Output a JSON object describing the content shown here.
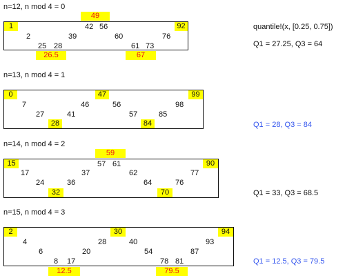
{
  "sections": [
    {
      "title": "n=12, n mod 4 = 0",
      "min": "1",
      "max": "92",
      "median": "49",
      "values": [
        "2",
        "25",
        "28",
        "39",
        "42",
        "56",
        "60",
        "61",
        "73",
        "76"
      ],
      "q1": "26.5",
      "q3": "67"
    },
    {
      "title": "n=13, n mod 4 = 1",
      "min": "0",
      "max": "99",
      "median": "47",
      "values": [
        "7",
        "27",
        "41",
        "46",
        "56",
        "57",
        "85",
        "98"
      ],
      "q1": "28",
      "q3": "84"
    },
    {
      "title": "n=14, n mod 4 = 2",
      "min": "15",
      "max": "90",
      "median": "59",
      "values": [
        "17",
        "24",
        "36",
        "37",
        "57",
        "61",
        "62",
        "64",
        "76",
        "77"
      ],
      "q1": "32",
      "q3": "70"
    },
    {
      "title": "n=15, n mod 4 = 3",
      "min": "2",
      "max": "94",
      "median": "30",
      "values": [
        "4",
        "6",
        "8",
        "17",
        "20",
        "28",
        "40",
        "54",
        "78",
        "81",
        "87",
        "93"
      ],
      "q1": "12.5",
      "q3": "79.5"
    }
  ],
  "side_notes": {
    "function_call": "quantile!(x, [0.25, 0.75])",
    "result_0": "Q1 = 27.25, Q3 = 64",
    "result_1": "Q1 = 28, Q3 = 84",
    "result_2": "Q1 = 33, Q3 = 68.5",
    "result_3": "Q1 = 12.5, Q3 = 79.5"
  },
  "colors": {
    "highlight": "#ffff00",
    "quartile_text": "#ee1111",
    "note_blue": "#3355ee",
    "border": "#111111"
  }
}
